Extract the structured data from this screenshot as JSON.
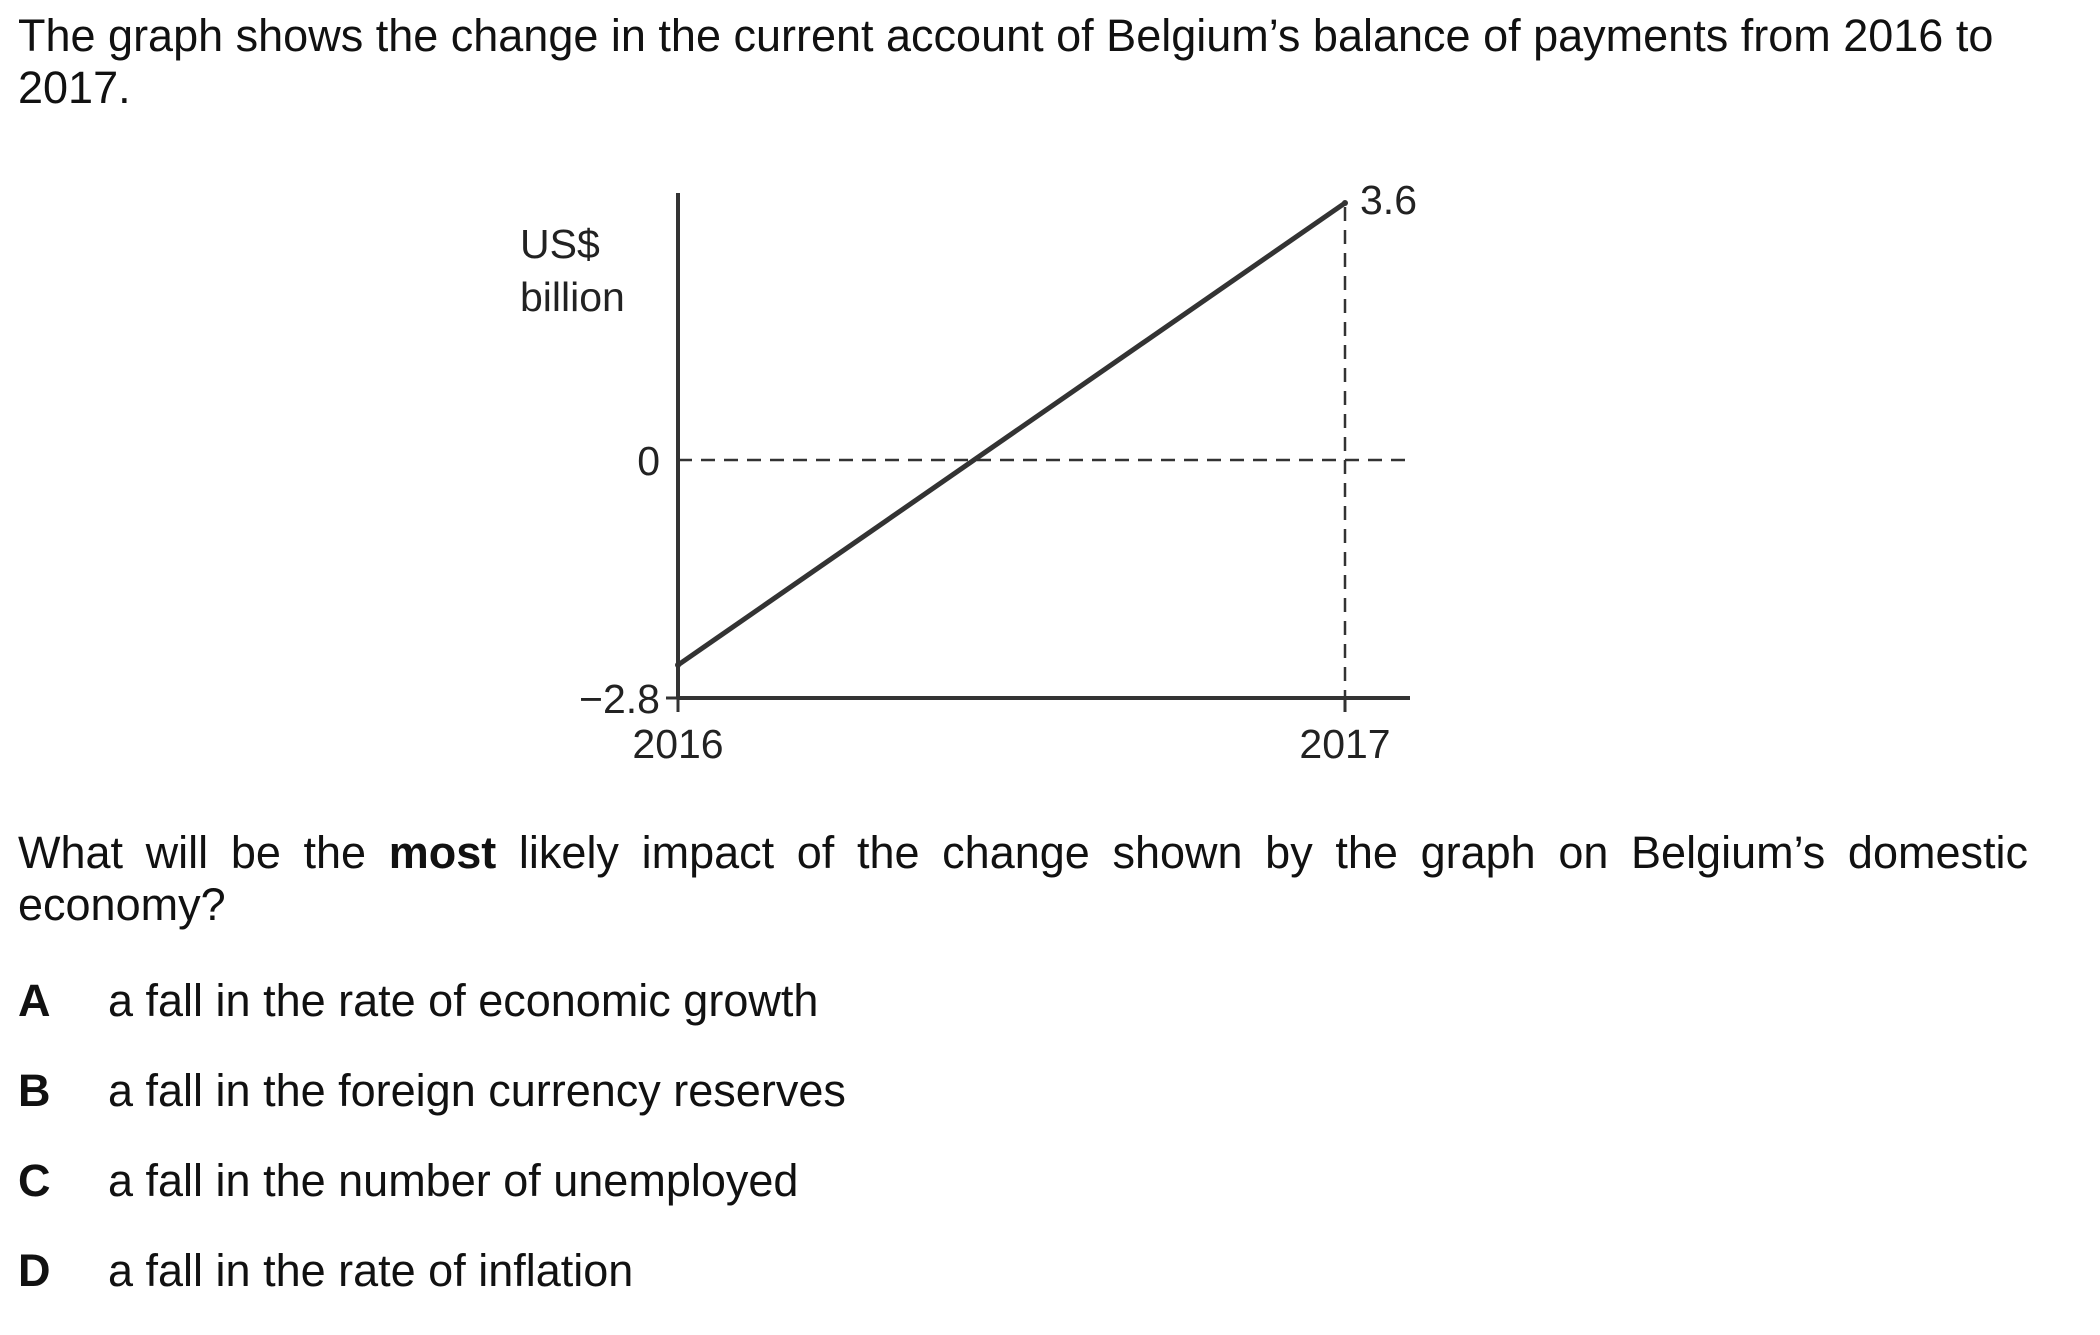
{
  "intro": "The graph shows the change in the current account of Belgium’s balance of payments from 2016 to 2017.",
  "question": {
    "before": "What will be the ",
    "bold": "most",
    "after": " likely impact of the change shown by the graph on Belgium’s domestic economy?"
  },
  "options": [
    {
      "letter": "A",
      "text": "a fall in the rate of economic growth"
    },
    {
      "letter": "B",
      "text": "a fall in the foreign currency reserves"
    },
    {
      "letter": "C",
      "text": "a fall in the number of unemployed"
    },
    {
      "letter": "D",
      "text": "a fall in the rate of inflation"
    }
  ],
  "chart_data": {
    "type": "line",
    "ylabel_line1": "US$",
    "ylabel_line2": "billion",
    "x": [
      "2016",
      "2017"
    ],
    "series": [
      {
        "values": [
          -2.8,
          3.6
        ]
      }
    ],
    "y_tick_labels": [
      {
        "value": -2.8,
        "label": "−2.8"
      },
      {
        "value": 0,
        "label": "0"
      }
    ],
    "data_labels": [
      {
        "x": "2017",
        "value": 3.6,
        "label": "3.6"
      }
    ],
    "reference_lines": [
      {
        "axis": "y",
        "value": 0,
        "style": "dashed"
      },
      {
        "axis": "x",
        "value": "2017",
        "style": "dashed"
      }
    ],
    "grid": false
  }
}
